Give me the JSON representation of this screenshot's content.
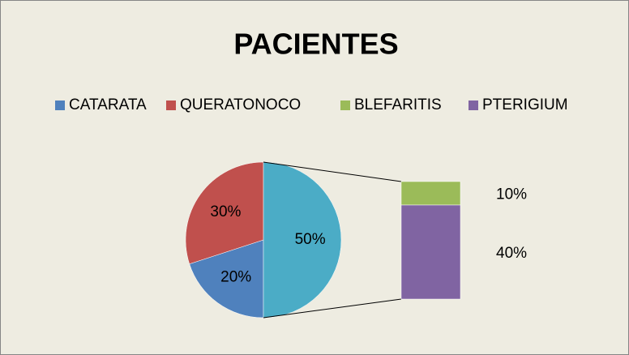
{
  "chart_data": {
    "type": "pie-of-bar",
    "title": "PACIENTES",
    "pie": {
      "categories": [
        "CATARATA",
        "QUERATONOCO",
        null
      ],
      "values": [
        20,
        30,
        50
      ],
      "value_labels": [
        "20%",
        "30%",
        "50%"
      ],
      "colors": [
        "#4f81bd",
        "#c0504d",
        "#4bacc6"
      ]
    },
    "bar": {
      "categories": [
        "BLEFARITIS",
        "PTERIGIUM"
      ],
      "values": [
        10,
        40
      ],
      "value_labels": [
        "10%",
        "40%"
      ],
      "colors": [
        "#9bbb59",
        "#8064a2"
      ]
    },
    "legend": "top"
  }
}
